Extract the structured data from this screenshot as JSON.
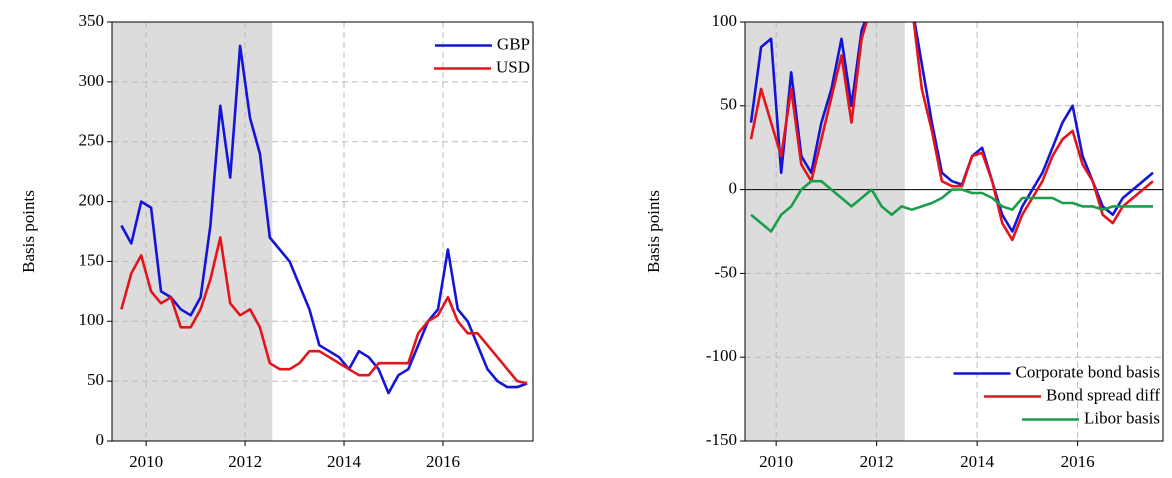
{
  "chart_data": [
    {
      "type": "line",
      "ylabel": "Basis points",
      "x": [
        2009.5,
        2009.7,
        2009.9,
        2010.1,
        2010.3,
        2010.5,
        2010.7,
        2010.9,
        2011.1,
        2011.3,
        2011.5,
        2011.7,
        2011.9,
        2012.1,
        2012.3,
        2012.5,
        2012.7,
        2012.9,
        2013.1,
        2013.3,
        2013.5,
        2013.7,
        2013.9,
        2014.1,
        2014.3,
        2014.5,
        2014.7,
        2014.9,
        2015.1,
        2015.3,
        2015.5,
        2015.7,
        2015.9,
        2016.1,
        2016.3,
        2016.5,
        2016.7,
        2016.9,
        2017.1,
        2017.3,
        2017.5,
        2017.7
      ],
      "series": [
        {
          "name": "GBP",
          "color": "#1414d9",
          "values": [
            180,
            165,
            200,
            195,
            125,
            120,
            110,
            105,
            120,
            180,
            280,
            220,
            330,
            270,
            240,
            170,
            160,
            150,
            130,
            110,
            80,
            75,
            70,
            60,
            75,
            70,
            60,
            40,
            55,
            60,
            80,
            100,
            110,
            160,
            110,
            100,
            80,
            60,
            50,
            45,
            45,
            48
          ]
        },
        {
          "name": "USD",
          "color": "#e3141c",
          "values": [
            110,
            140,
            155,
            125,
            115,
            120,
            95,
            95,
            110,
            135,
            170,
            115,
            105,
            110,
            95,
            65,
            60,
            60,
            65,
            75,
            75,
            70,
            65,
            60,
            55,
            55,
            65,
            65,
            65,
            65,
            90,
            100,
            105,
            120,
            100,
            90,
            90,
            80,
            70,
            60,
            50,
            48
          ]
        }
      ],
      "xlim": [
        2009.31,
        2017.82
      ],
      "xticks": [
        2010,
        2012,
        2014,
        2016
      ],
      "ylim": [
        0,
        350
      ],
      "yticks": [
        0,
        50,
        100,
        150,
        200,
        250,
        300,
        350
      ],
      "grid": true,
      "legend": "upper right",
      "shaded_xrange": [
        2009.31,
        2012.55
      ]
    },
    {
      "type": "line",
      "ylabel": "Basis points",
      "x": [
        2009.5,
        2009.7,
        2009.9,
        2010.1,
        2010.3,
        2010.5,
        2010.7,
        2010.9,
        2011.1,
        2011.3,
        2011.5,
        2011.7,
        2011.9,
        2012.1,
        2012.3,
        2012.5,
        2012.7,
        2012.9,
        2013.1,
        2013.3,
        2013.5,
        2013.7,
        2013.9,
        2014.1,
        2014.3,
        2014.5,
        2014.7,
        2014.9,
        2015.1,
        2015.3,
        2015.5,
        2015.7,
        2015.9,
        2016.1,
        2016.3,
        2016.5,
        2016.7,
        2016.9,
        2017.1,
        2017.3,
        2017.5
      ],
      "series": [
        {
          "name": "Corporate bond basis",
          "color": "#1414d9",
          "values": [
            40,
            85,
            90,
            10,
            70,
            20,
            10,
            40,
            60,
            90,
            50,
            95,
            110,
            110,
            110,
            110,
            110,
            75,
            40,
            10,
            5,
            3,
            20,
            25,
            5,
            -15,
            -25,
            -10,
            0,
            10,
            25,
            40,
            50,
            20,
            5,
            -10,
            -15,
            -5,
            0,
            5,
            10
          ]
        },
        {
          "name": "Bond spread diff",
          "color": "#e3141c",
          "values": [
            30,
            60,
            40,
            20,
            60,
            15,
            5,
            30,
            55,
            80,
            40,
            90,
            110,
            110,
            110,
            110,
            110,
            60,
            35,
            5,
            2,
            2,
            20,
            22,
            5,
            -20,
            -30,
            -15,
            -5,
            5,
            20,
            30,
            35,
            15,
            5,
            -15,
            -20,
            -10,
            -5,
            0,
            5
          ]
        },
        {
          "name": "Libor basis",
          "color": "#1a9e4a",
          "values": [
            -15,
            -20,
            -25,
            -15,
            -10,
            0,
            5,
            5,
            0,
            -5,
            -10,
            -5,
            0,
            -10,
            -15,
            -10,
            -12,
            -10,
            -8,
            -5,
            0,
            0,
            -2,
            -2,
            -5,
            -10,
            -12,
            -5,
            -5,
            -5,
            -5,
            -8,
            -8,
            -10,
            -10,
            -12,
            -10,
            -10,
            -10,
            -10,
            -10
          ]
        }
      ],
      "xlim": [
        2009.38,
        2017.7
      ],
      "xticks": [
        2010,
        2012,
        2014,
        2016
      ],
      "ylim": [
        -150,
        100
      ],
      "yticks": [
        -150,
        -100,
        -50,
        0,
        50,
        100
      ],
      "grid": true,
      "legend": "lower right",
      "zero_line": true,
      "shaded_xrange": [
        2009.38,
        2012.56
      ]
    }
  ]
}
